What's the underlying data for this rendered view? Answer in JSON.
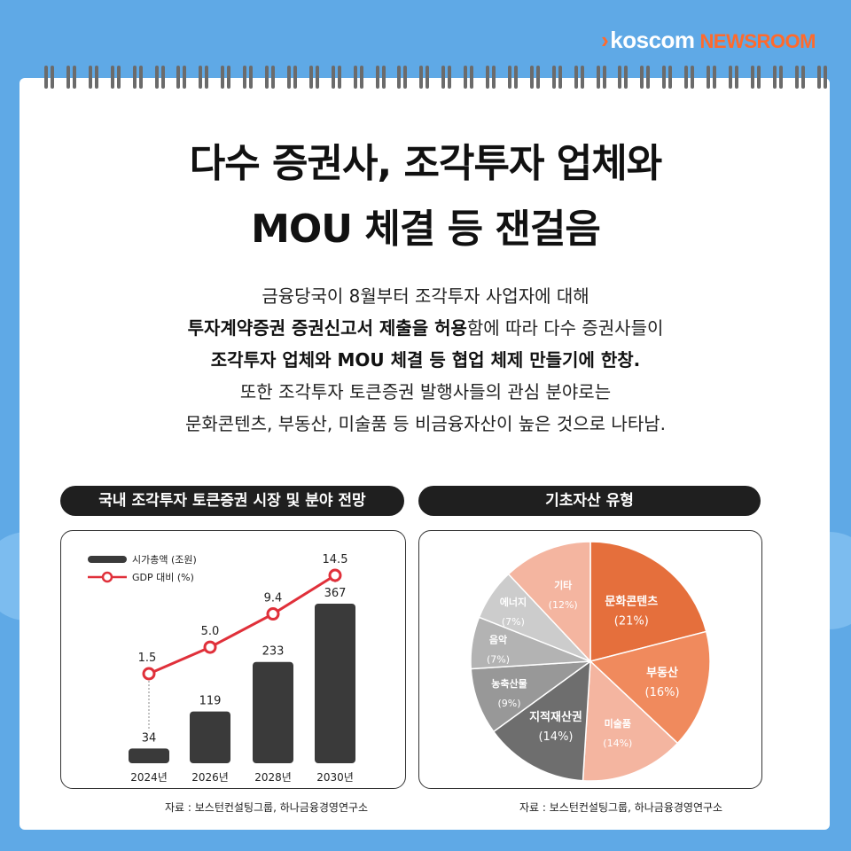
{
  "brand": {
    "koscom": "koscom",
    "newsroom": "NEWSROOM"
  },
  "title": {
    "line1": "다수 증권사, 조각투자 업체와",
    "line2": "MOU 체결 등 잰걸음"
  },
  "description": {
    "l1": "금융당국이 8월부터 조각투자 사업자에 대해",
    "l2_bold": "투자계약증권 증권신고서 제출을 허용",
    "l2_rest": "함에 따라 다수 증권사들이",
    "l3_bold": "조각투자 업체와 MOU 체결 등 협업 체제 만들기에 한창.",
    "l4": "또한 조각투자 토큰증권 발행사들의 관심 분야로는",
    "l5": "문화콘텐츠, 부동산, 미술품 등 비금융자산이 높은 것으로 나타남."
  },
  "left_section": {
    "header": "국내 조각투자 토큰증권 시장 및 분야 전망",
    "source": "자료 : 보스턴컨설팅그룹, 하나금융경영연구소"
  },
  "right_section": {
    "header": "기초자산 유형",
    "source": "자료 : 보스턴컨설팅그룹, 하나금융경영연구소"
  },
  "colors": {
    "bar": "#3a3a3a",
    "line": "#e0303a",
    "accent": "#ff6a2c"
  },
  "chart_data": [
    {
      "type": "bar",
      "categories": [
        "2024년",
        "2026년",
        "2028년",
        "2030년"
      ],
      "series": [
        {
          "name": "시가총액 (조원)",
          "type": "bar",
          "values": [
            34,
            119,
            233,
            367
          ],
          "labels": [
            "34",
            "119",
            "233",
            "367"
          ]
        },
        {
          "name": "GDP 대비 (%)",
          "type": "line",
          "values": [
            1.5,
            5.0,
            9.4,
            14.5
          ],
          "labels": [
            "1.5",
            "5.0",
            "9.4",
            "14.5"
          ]
        }
      ]
    },
    {
      "type": "pie",
      "slices": [
        {
          "label": "문화콘텐츠",
          "pct_label": "(21%)",
          "value": 21,
          "color": "#e56f3c"
        },
        {
          "label": "부동산",
          "pct_label": "(16%)",
          "value": 16,
          "color": "#f08a5d"
        },
        {
          "label": "미술품",
          "pct_label": "(14%)",
          "value": 14,
          "color": "#f4b5a0"
        },
        {
          "label": "지적재산권",
          "pct_label": "(14%)",
          "value": 14,
          "color": "#6e6e6e"
        },
        {
          "label": "농축산물",
          "pct_label": "(9%)",
          "value": 9,
          "color": "#989898"
        },
        {
          "label": "음악",
          "pct_label": "(7%)",
          "value": 7,
          "color": "#b3b3b3"
        },
        {
          "label": "에너지",
          "pct_label": "(7%)",
          "value": 7,
          "color": "#cccccc"
        },
        {
          "label": "기타",
          "pct_label": "(12%)",
          "value": 12,
          "color": "#f4b5a0"
        }
      ]
    }
  ]
}
